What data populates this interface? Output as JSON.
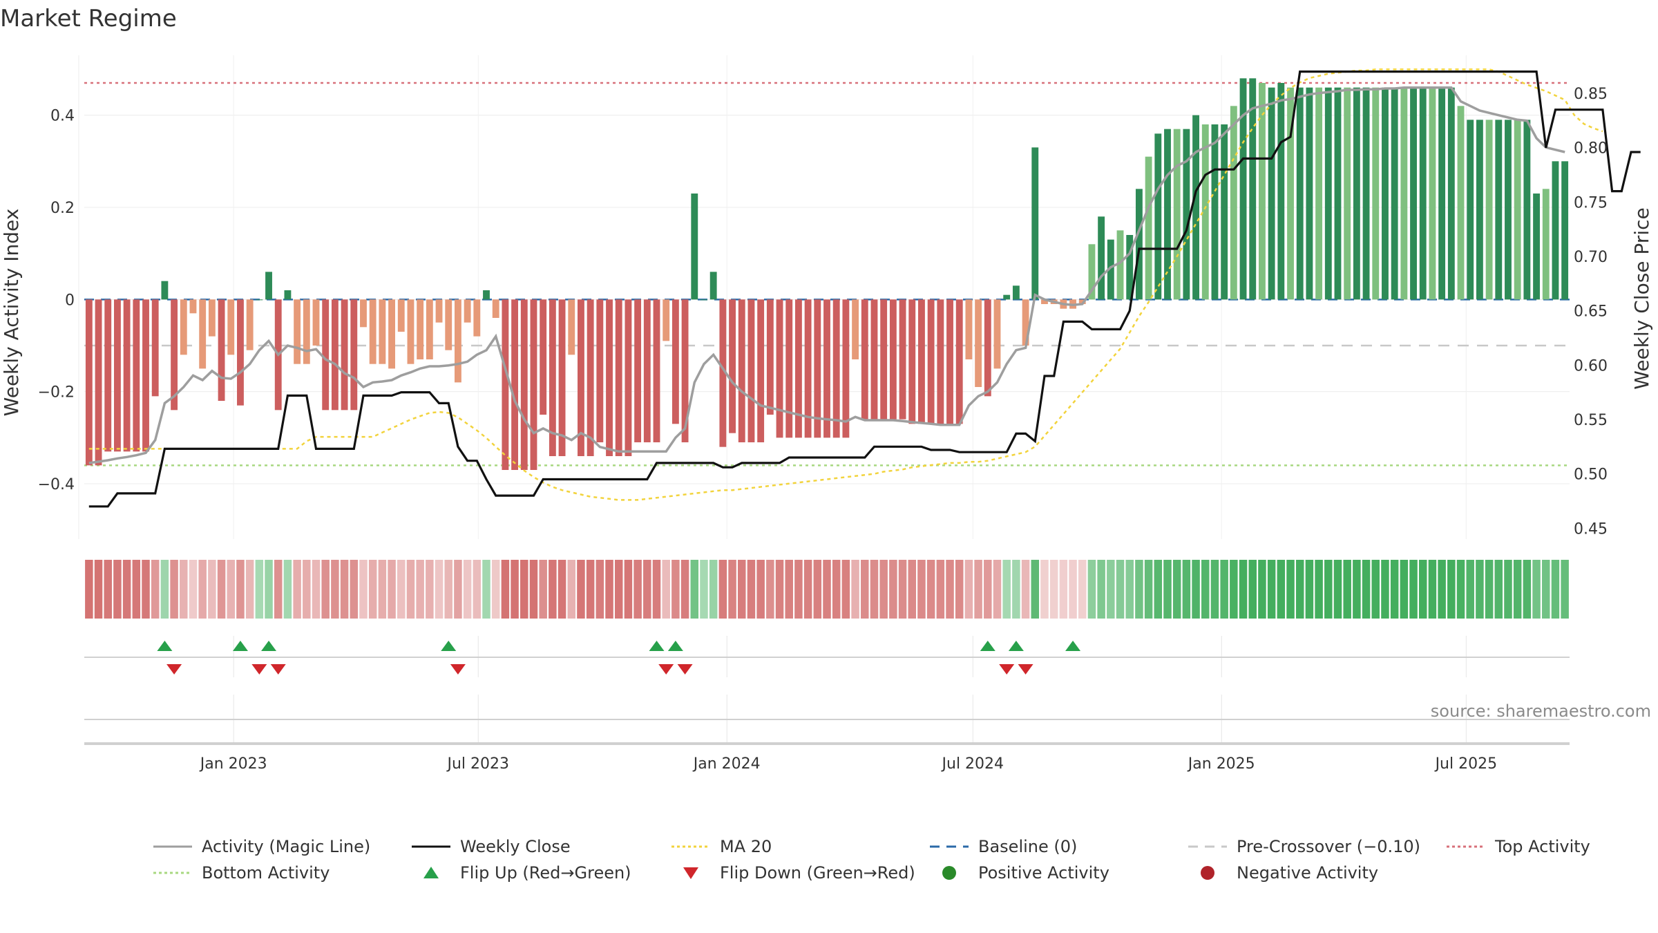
{
  "chart_data": {
    "type": "bar",
    "title": "Market Regime",
    "ylabel_left": "Weekly Activity Index",
    "ylabel_right": "Weekly Close Price",
    "source": "source: sharemaestro.com",
    "x_start": "2022-09-16",
    "week_step_days": 7,
    "ylim_left": [
      -0.52,
      0.53
    ],
    "ylim_right": [
      0.44,
      0.885
    ],
    "yticks_left": [
      {
        "v": 0.4,
        "label": "0.4"
      },
      {
        "v": 0.2,
        "label": "0.2"
      },
      {
        "v": 0,
        "label": "0"
      },
      {
        "v": -0.2,
        "label": "−0.2"
      },
      {
        "v": -0.4,
        "label": "−0.4"
      }
    ],
    "yticks_right": [
      {
        "v": 0.85,
        "label": "0.85"
      },
      {
        "v": 0.8,
        "label": "0.80"
      },
      {
        "v": 0.75,
        "label": "0.75"
      },
      {
        "v": 0.7,
        "label": "0.70"
      },
      {
        "v": 0.65,
        "label": "0.65"
      },
      {
        "v": 0.6,
        "label": "0.60"
      },
      {
        "v": 0.55,
        "label": "0.55"
      },
      {
        "v": 0.5,
        "label": "0.50"
      },
      {
        "v": 0.45,
        "label": "0.45"
      }
    ],
    "xticks": [
      {
        "date": "2023-01-01",
        "label": "Jan 2023"
      },
      {
        "date": "2023-07-01",
        "label": "Jul 2023"
      },
      {
        "date": "2024-01-01",
        "label": "Jan 2024"
      },
      {
        "date": "2024-07-01",
        "label": "Jul 2024"
      },
      {
        "date": "2025-01-01",
        "label": "Jan 2025"
      },
      {
        "date": "2025-07-01",
        "label": "Jul 2025"
      }
    ],
    "reference_lines": {
      "top_activity": 0.47,
      "bottom_activity": -0.36,
      "baseline": 0,
      "pre_crossover": -0.1
    },
    "activity_index": [
      -0.36,
      -0.36,
      -0.33,
      -0.33,
      -0.33,
      -0.33,
      -0.33,
      -0.21,
      0.04,
      -0.24,
      -0.12,
      -0.03,
      -0.15,
      -0.08,
      -0.22,
      -0.12,
      -0.23,
      -0.11,
      0.0,
      0.06,
      -0.24,
      0.02,
      -0.14,
      -0.14,
      -0.1,
      -0.24,
      -0.24,
      -0.24,
      -0.24,
      -0.06,
      -0.14,
      -0.14,
      -0.15,
      -0.07,
      -0.14,
      -0.13,
      -0.13,
      -0.05,
      -0.11,
      -0.18,
      -0.05,
      -0.08,
      0.02,
      -0.04,
      -0.37,
      -0.37,
      -0.37,
      -0.37,
      -0.25,
      -0.34,
      -0.34,
      -0.12,
      -0.34,
      -0.34,
      -0.31,
      -0.34,
      -0.34,
      -0.34,
      -0.31,
      -0.31,
      -0.31,
      -0.09,
      -0.27,
      -0.31,
      0.23,
      0.0,
      0.06,
      -0.32,
      -0.29,
      -0.31,
      -0.31,
      -0.31,
      -0.25,
      -0.3,
      -0.3,
      -0.3,
      -0.3,
      -0.3,
      -0.3,
      -0.3,
      -0.3,
      -0.13,
      -0.26,
      -0.26,
      -0.26,
      -0.26,
      -0.26,
      -0.27,
      -0.27,
      -0.27,
      -0.27,
      -0.27,
      -0.27,
      -0.13,
      -0.19,
      -0.21,
      -0.15,
      0.01,
      0.03,
      -0.1,
      0.33,
      -0.01,
      -0.01,
      -0.02,
      -0.02,
      -0.01,
      0.12,
      0.18,
      0.13,
      0.15,
      0.14,
      0.24,
      0.31,
      0.36,
      0.37,
      0.37,
      0.37,
      0.4,
      0.38,
      0.38,
      0.38,
      0.42,
      0.48,
      0.48,
      0.47,
      0.46,
      0.47,
      0.46,
      0.46,
      0.46,
      0.46,
      0.46,
      0.46,
      0.46,
      0.46,
      0.46,
      0.46,
      0.46,
      0.46,
      0.46,
      0.46,
      0.46,
      0.46,
      0.46,
      0.46,
      0.42,
      0.39,
      0.39,
      0.39,
      0.39,
      0.39,
      0.39,
      0.39,
      0.23,
      0.24,
      0.3,
      0.3
    ],
    "weekly_close": [
      0.47,
      0.47,
      0.47,
      0.482,
      0.482,
      0.482,
      0.482,
      0.482,
      0.523,
      0.523,
      0.523,
      0.523,
      0.523,
      0.523,
      0.523,
      0.523,
      0.523,
      0.523,
      0.523,
      0.523,
      0.523,
      0.572,
      0.572,
      0.572,
      0.523,
      0.523,
      0.523,
      0.523,
      0.523,
      0.572,
      0.572,
      0.572,
      0.572,
      0.575,
      0.575,
      0.575,
      0.575,
      0.565,
      0.565,
      0.525,
      0.512,
      0.512,
      0.495,
      0.48,
      0.48,
      0.48,
      0.48,
      0.48,
      0.495,
      0.495,
      0.495,
      0.495,
      0.495,
      0.495,
      0.495,
      0.495,
      0.495,
      0.495,
      0.495,
      0.495,
      0.51,
      0.51,
      0.51,
      0.51,
      0.51,
      0.51,
      0.51,
      0.506,
      0.506,
      0.51,
      0.51,
      0.51,
      0.51,
      0.51,
      0.515,
      0.515,
      0.515,
      0.515,
      0.515,
      0.515,
      0.515,
      0.515,
      0.515,
      0.525,
      0.525,
      0.525,
      0.525,
      0.525,
      0.525,
      0.522,
      0.522,
      0.522,
      0.52,
      0.52,
      0.52,
      0.52,
      0.52,
      0.52,
      0.537,
      0.537,
      0.53,
      0.59,
      0.59,
      0.64,
      0.64,
      0.64,
      0.633,
      0.633,
      0.633,
      0.633,
      0.65,
      0.707,
      0.707,
      0.707,
      0.707,
      0.707,
      0.724,
      0.76,
      0.775,
      0.78,
      0.78,
      0.78,
      0.79,
      0.79,
      0.79,
      0.79,
      0.805,
      0.81,
      0.87,
      0.87,
      0.87,
      0.87,
      0.87,
      0.87,
      0.87,
      0.87,
      0.87,
      0.87,
      0.87,
      0.87,
      0.87,
      0.87,
      0.87,
      0.87,
      0.87,
      0.87,
      0.87,
      0.87,
      0.87,
      0.87,
      0.87,
      0.87,
      0.87,
      0.87,
      0.8,
      0.835,
      0.835,
      0.835,
      0.835,
      0.835,
      0.835,
      0.76,
      0.76,
      0.796,
      0.796
    ],
    "activity_magic_line": [
      -0.355,
      -0.352,
      -0.349,
      -0.345,
      -0.342,
      -0.338,
      -0.333,
      -0.305,
      -0.225,
      -0.21,
      -0.19,
      -0.165,
      -0.175,
      -0.155,
      -0.17,
      -0.172,
      -0.158,
      -0.14,
      -0.11,
      -0.09,
      -0.12,
      -0.1,
      -0.105,
      -0.112,
      -0.108,
      -0.13,
      -0.14,
      -0.16,
      -0.17,
      -0.19,
      -0.18,
      -0.178,
      -0.175,
      -0.165,
      -0.158,
      -0.15,
      -0.145,
      -0.145,
      -0.143,
      -0.14,
      -0.135,
      -0.12,
      -0.11,
      -0.08,
      -0.15,
      -0.22,
      -0.26,
      -0.29,
      -0.28,
      -0.29,
      -0.295,
      -0.305,
      -0.29,
      -0.3,
      -0.32,
      -0.325,
      -0.33,
      -0.33,
      -0.33,
      -0.33,
      -0.33,
      -0.33,
      -0.3,
      -0.28,
      -0.18,
      -0.14,
      -0.12,
      -0.15,
      -0.18,
      -0.2,
      -0.215,
      -0.23,
      -0.235,
      -0.24,
      -0.245,
      -0.25,
      -0.255,
      -0.258,
      -0.26,
      -0.262,
      -0.265,
      -0.255,
      -0.262,
      -0.262,
      -0.262,
      -0.262,
      -0.264,
      -0.266,
      -0.268,
      -0.27,
      -0.272,
      -0.272,
      -0.272,
      -0.23,
      -0.21,
      -0.2,
      -0.18,
      -0.14,
      -0.11,
      -0.105,
      0.01,
      0.0,
      -0.005,
      -0.01,
      -0.012,
      -0.01,
      0.02,
      0.05,
      0.07,
      0.08,
      0.1,
      0.15,
      0.2,
      0.24,
      0.27,
      0.29,
      0.3,
      0.32,
      0.33,
      0.34,
      0.36,
      0.38,
      0.4,
      0.415,
      0.42,
      0.425,
      0.432,
      0.435,
      0.44,
      0.445,
      0.448,
      0.45,
      0.452,
      0.455,
      0.455,
      0.456,
      0.456,
      0.458,
      0.458,
      0.46,
      0.46,
      0.46,
      0.46,
      0.46,
      0.46,
      0.43,
      0.42,
      0.41,
      0.405,
      0.4,
      0.395,
      0.39,
      0.388,
      0.35,
      0.33,
      0.325,
      0.32
    ],
    "ma20": [
      0.523,
      0.523,
      0.523,
      0.523,
      0.523,
      0.523,
      0.523,
      0.523,
      0.523,
      0.523,
      0.523,
      0.523,
      0.523,
      0.523,
      0.523,
      0.523,
      0.523,
      0.523,
      0.523,
      0.523,
      0.523,
      0.523,
      0.523,
      0.53,
      0.534,
      0.534,
      0.534,
      0.534,
      0.534,
      0.534,
      0.534,
      0.538,
      0.542,
      0.546,
      0.55,
      0.553,
      0.556,
      0.557,
      0.556,
      0.552,
      0.546,
      0.54,
      0.533,
      0.525,
      0.517,
      0.51,
      0.503,
      0.497,
      0.492,
      0.488,
      0.485,
      0.483,
      0.481,
      0.479,
      0.478,
      0.477,
      0.476,
      0.476,
      0.476,
      0.477,
      0.478,
      0.479,
      0.48,
      0.481,
      0.482,
      0.483,
      0.484,
      0.485,
      0.485,
      0.486,
      0.487,
      0.488,
      0.489,
      0.49,
      0.491,
      0.492,
      0.493,
      0.494,
      0.495,
      0.496,
      0.497,
      0.498,
      0.499,
      0.5,
      0.502,
      0.503,
      0.504,
      0.506,
      0.507,
      0.508,
      0.509,
      0.51,
      0.51,
      0.511,
      0.511,
      0.512,
      0.514,
      0.516,
      0.518,
      0.52,
      0.525,
      0.535,
      0.545,
      0.555,
      0.565,
      0.575,
      0.585,
      0.595,
      0.605,
      0.615,
      0.63,
      0.645,
      0.658,
      0.672,
      0.686,
      0.7,
      0.715,
      0.73,
      0.745,
      0.76,
      0.775,
      0.79,
      0.805,
      0.818,
      0.83,
      0.84,
      0.848,
      0.855,
      0.86,
      0.864,
      0.866,
      0.868,
      0.869,
      0.87,
      0.871,
      0.871,
      0.872,
      0.872,
      0.872,
      0.872,
      0.872,
      0.872,
      0.872,
      0.872,
      0.872,
      0.872,
      0.872,
      0.872,
      0.872,
      0.87,
      0.866,
      0.862,
      0.858,
      0.855,
      0.852,
      0.848,
      0.844,
      0.83,
      0.822,
      0.818,
      0.815
    ],
    "flip_up_weeks": [
      8,
      16,
      19,
      38,
      60,
      62,
      95,
      98,
      104
    ],
    "flip_down_weeks": [
      9,
      18,
      20,
      39,
      61,
      63,
      97,
      99
    ],
    "legend": [
      {
        "label": "Activity (Magic Line)",
        "kind": "line",
        "color": "#9e9e9e",
        "dash": ""
      },
      {
        "label": "Weekly Close",
        "kind": "line",
        "color": "#111111",
        "dash": ""
      },
      {
        "label": "MA 20",
        "kind": "line",
        "color": "#f2d33c",
        "dash": "4 4"
      },
      {
        "label": "Baseline (0)",
        "kind": "line",
        "color": "#2b6aa8",
        "dash": "14 10"
      },
      {
        "label": "Pre-Crossover (−0.10)",
        "kind": "line",
        "color": "#c8c8c8",
        "dash": "14 10"
      },
      {
        "label": "Top Activity",
        "kind": "line",
        "color": "#d8707a",
        "dash": "4 4"
      },
      {
        "label": "Bottom Activity",
        "kind": "line",
        "color": "#a8d880",
        "dash": "4 4"
      },
      {
        "label": "Flip Up (Red→Green)",
        "kind": "up",
        "color": "#27a04a",
        "dash": ""
      },
      {
        "label": "Flip Down (Green→Red)",
        "kind": "down",
        "color": "#d0262b",
        "dash": ""
      },
      {
        "label": "Positive Activity",
        "kind": "dot",
        "color": "#2a8a2a",
        "dash": ""
      },
      {
        "label": "Negative Activity",
        "kind": "dot",
        "color": "#b0232a",
        "dash": ""
      }
    ],
    "colors": {
      "pos_dark": "#2e8b57",
      "pos_light": "#7fc07f",
      "neg_dark": "#cc5e5e",
      "neg_light": "#e69a78"
    }
  }
}
